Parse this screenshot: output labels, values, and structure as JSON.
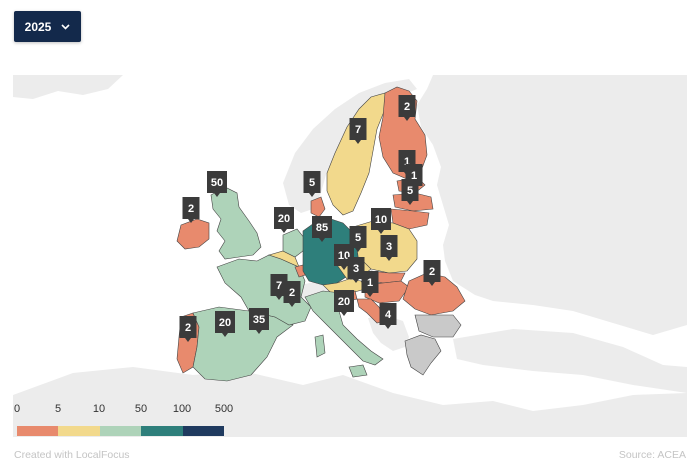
{
  "year_selector": {
    "value": "2025"
  },
  "colors": {
    "bin_0_5": "#e88a6d",
    "bin_5_10": "#f2d98c",
    "bin_10_50": "#aed3b9",
    "bin_50_100": "#2e7f7b",
    "bin_100_500": "#1f3a5f",
    "no_data": "#c9c9c9",
    "background_land": "#ececec",
    "marker": "#3b3b3b"
  },
  "countries": [
    {
      "name": "Ireland",
      "value": 2
    },
    {
      "name": "United Kingdom",
      "value": 50
    },
    {
      "name": "Portugal",
      "value": 2
    },
    {
      "name": "Spain",
      "value": 20
    },
    {
      "name": "France",
      "value": 35
    },
    {
      "name": "Belgium",
      "value": 7
    },
    {
      "name": "Luxembourg",
      "value": 2
    },
    {
      "name": "Netherlands",
      "value": 20
    },
    {
      "name": "Germany",
      "value": 85
    },
    {
      "name": "Denmark",
      "value": 5
    },
    {
      "name": "Norway",
      "value": 2
    },
    {
      "name": "Sweden",
      "value": 7
    },
    {
      "name": "Finland",
      "value": 1
    },
    {
      "name": "Estonia",
      "value": 1
    },
    {
      "name": "Latvia",
      "value": 5
    },
    {
      "name": "Lithuania",
      "value": 10
    },
    {
      "name": "Poland",
      "value": 3
    },
    {
      "name": "Czechia",
      "value": 5
    },
    {
      "name": "Austria",
      "value": 10
    },
    {
      "name": "Slovakia",
      "value": 3
    },
    {
      "name": "Hungary",
      "value": 1
    },
    {
      "name": "Romania",
      "value": 2
    },
    {
      "name": "Italy",
      "value": 20
    },
    {
      "name": "Croatia",
      "value": 4
    }
  ],
  "legend": {
    "ticks": [
      "0",
      "5",
      "10",
      "50",
      "100",
      "500"
    ]
  },
  "footer": {
    "credit": "Created with LocalFocus",
    "source": "Source: ACEA"
  }
}
